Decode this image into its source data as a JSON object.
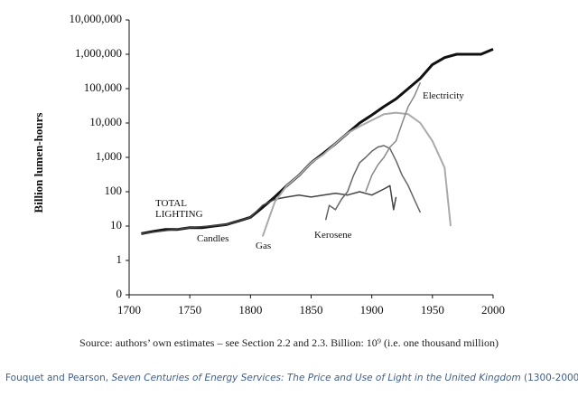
{
  "chart_data": {
    "type": "line",
    "ylabel": "Billion lumen-hours",
    "log_scale": true,
    "xlim": [
      1700,
      2000
    ],
    "xticks": [
      1700,
      1750,
      1800,
      1850,
      1900,
      1950,
      2000
    ],
    "ylim": [
      0.1,
      10000000
    ],
    "yticks": [
      {
        "value": 0.1,
        "label": "0"
      },
      1,
      10,
      100,
      {
        "value": 1000,
        "label": "1,000"
      },
      {
        "value": 10000,
        "label": "10,000"
      },
      {
        "value": 100000,
        "label": "100,000"
      },
      {
        "value": 1000000,
        "label": "1,000,000"
      },
      {
        "value": 10000000,
        "label": "10,000,000"
      }
    ],
    "series": [
      {
        "name": "TOTAL LIGHTING",
        "color": "#111111",
        "x": [
          1710,
          1720,
          1730,
          1740,
          1750,
          1760,
          1770,
          1780,
          1790,
          1800,
          1810,
          1820,
          1830,
          1840,
          1850,
          1860,
          1870,
          1880,
          1890,
          1900,
          1910,
          1920,
          1930,
          1940,
          1950,
          1960,
          1970,
          1980,
          1990,
          2000
        ],
        "values": [
          6,
          7,
          8,
          8,
          9,
          9,
          10,
          11,
          14,
          18,
          35,
          70,
          150,
          300,
          700,
          1300,
          2500,
          5000,
          10000,
          17000,
          30000,
          50000,
          100000,
          200000,
          500000,
          800000,
          1000000,
          1000000,
          1000000,
          1400000
        ]
      },
      {
        "name": "Candles",
        "color": "#444444",
        "x": [
          1710,
          1750,
          1780,
          1800,
          1810,
          1820,
          1830,
          1840,
          1850,
          1860,
          1870,
          1880,
          1890,
          1900,
          1910,
          1915,
          1918,
          1920
        ],
        "values": [
          6,
          9,
          11,
          18,
          40,
          60,
          70,
          80,
          70,
          80,
          90,
          80,
          100,
          80,
          120,
          150,
          30,
          70
        ]
      },
      {
        "name": "Gas",
        "color": "#aaaaaa",
        "x": [
          1810,
          1820,
          1830,
          1840,
          1850,
          1860,
          1870,
          1880,
          1890,
          1900,
          1910,
          1920,
          1930,
          1940,
          1950,
          1960,
          1965
        ],
        "values": [
          5,
          50,
          150,
          300,
          700,
          1200,
          2500,
          5000,
          8000,
          12000,
          18000,
          20000,
          18000,
          10000,
          3000,
          500,
          10
        ]
      },
      {
        "name": "Kerosene",
        "color": "#666666",
        "x": [
          1862,
          1865,
          1870,
          1875,
          1880,
          1885,
          1890,
          1895,
          1900,
          1905,
          1910,
          1915,
          1920,
          1925,
          1930,
          1935,
          1940
        ],
        "values": [
          15,
          40,
          30,
          60,
          100,
          300,
          700,
          1000,
          1500,
          2000,
          2200,
          1800,
          800,
          300,
          150,
          60,
          25
        ]
      },
      {
        "name": "Electricity",
        "color": "#888888",
        "x": [
          1895,
          1900,
          1905,
          1910,
          1915,
          1920,
          1925,
          1930,
          1935,
          1940
        ],
        "values": [
          100,
          300,
          600,
          1000,
          2000,
          3000,
          10000,
          30000,
          60000,
          150000
        ]
      }
    ]
  },
  "source": "Source: authors’ own estimates – see Section 2.2 and 2.3.  Billion: 10⁹ (i.e. one thousand million)",
  "caption": {
    "author": "Fouquet and Pearson, ",
    "title": "Seven Centuries of Energy Services: The Price and Use of Light in the United Kingdom",
    "years": " (1300-2000)"
  }
}
